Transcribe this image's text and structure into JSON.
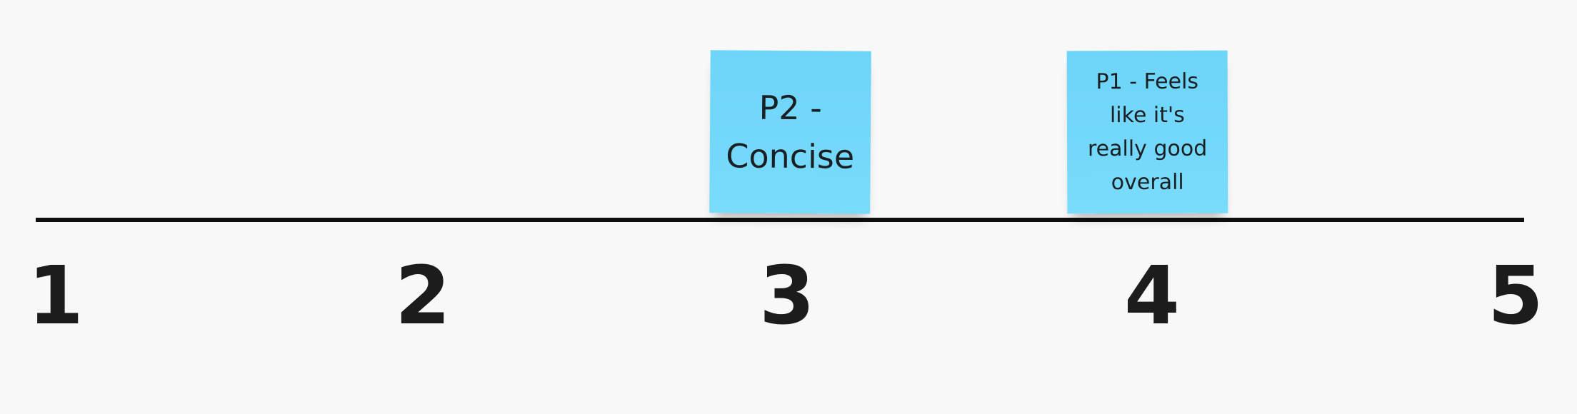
{
  "board": {
    "background_color": "#f8f8f8",
    "line_color": "#0f0f0f"
  },
  "scale": {
    "ticks": [
      "1",
      "2",
      "3",
      "4",
      "5"
    ]
  },
  "stickies": [
    {
      "text": "P2 - Concise",
      "color": "#6fd5f8",
      "scale_value": 3
    },
    {
      "text": "P1 - Feels like it's really good overall",
      "color": "#6fd5f8",
      "scale_value": 4
    }
  ]
}
